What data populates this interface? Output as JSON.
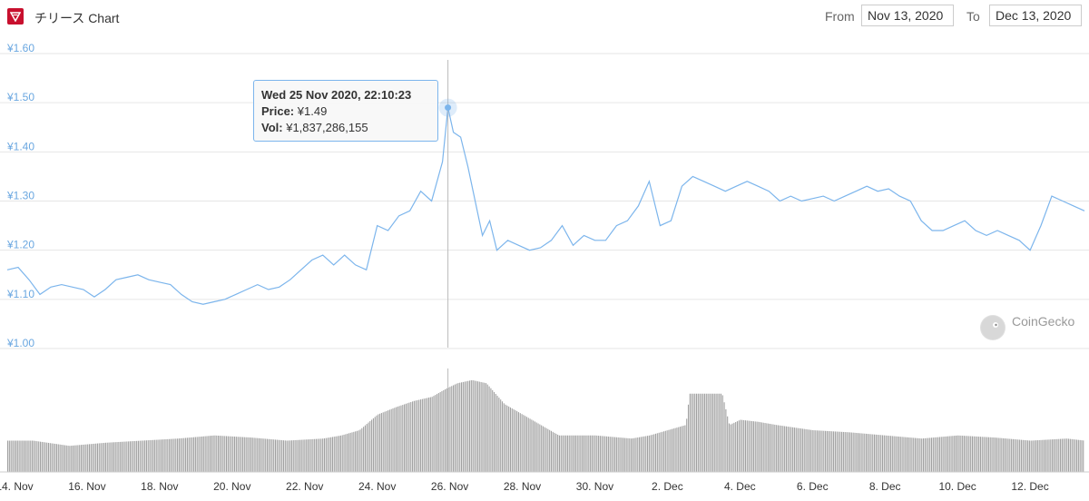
{
  "header": {
    "title": "チリース Chart",
    "from_label": "From",
    "from_value": "Nov 13, 2020",
    "to_label": "To",
    "to_value": "Dec 13, 2020"
  },
  "tooltip": {
    "date": "Wed 25 Nov 2020, 22:10:23",
    "price_label": "Price:",
    "price_value": "¥1.49",
    "vol_label": "Vol:",
    "vol_value": "¥1,837,286,155"
  },
  "credit": "CoinGecko",
  "colors": {
    "line": "#7cb5ec",
    "volume": "#a0a0a0",
    "grid": "#e6e6e6",
    "axis_label": "#6aa7e0"
  },
  "chart_data": {
    "type": "line",
    "title": "チリース Chart",
    "y_ticks": [
      "¥1.00",
      "¥1.10",
      "¥1.20",
      "¥1.30",
      "¥1.40",
      "¥1.50",
      "¥1.60"
    ],
    "ylim": [
      1.0,
      1.6
    ],
    "x_ticks": [
      "14. Nov",
      "16. Nov",
      "18. Nov",
      "20. Nov",
      "22. Nov",
      "24. Nov",
      "26. Nov",
      "28. Nov",
      "30. Nov",
      "2. Dec",
      "4. Dec",
      "6. Dec",
      "8. Dec",
      "10. Dec",
      "12. Dec"
    ],
    "x_start_day": 13.8,
    "x_end_day": 43.5,
    "series": [
      {
        "x": [
          13.8,
          14.1,
          14.4,
          14.7,
          15.0,
          15.3,
          15.6,
          15.9,
          16.2,
          16.5,
          16.8,
          17.1,
          17.4,
          17.7,
          18.0,
          18.3,
          18.6,
          18.9,
          19.2,
          19.5,
          19.8,
          20.1,
          20.4,
          20.7,
          21.0,
          21.3,
          21.6,
          21.9,
          22.2,
          22.5,
          22.8,
          23.1,
          23.4,
          23.7,
          24.0,
          24.3,
          24.6,
          24.9,
          25.2,
          25.5,
          25.8,
          25.95,
          26.1,
          26.3,
          26.5,
          26.7,
          26.9,
          27.1,
          27.3,
          27.6,
          27.9,
          28.2,
          28.5,
          28.8,
          29.1,
          29.4,
          29.7,
          30.0,
          30.3,
          30.6,
          30.9,
          31.2,
          31.5,
          31.8,
          32.1,
          32.4,
          32.7,
          33.0,
          33.3,
          33.6,
          33.9,
          34.2,
          34.5,
          34.8,
          35.1,
          35.4,
          35.7,
          36.0,
          36.3,
          36.6,
          36.9,
          37.2,
          37.5,
          37.8,
          38.1,
          38.4,
          38.7,
          39.0,
          39.3,
          39.6,
          39.9,
          40.2,
          40.5,
          40.8,
          41.1,
          41.4,
          41.7,
          42.0,
          42.3,
          42.6,
          42.9,
          43.2,
          43.5
        ],
        "values": [
          1.16,
          1.165,
          1.14,
          1.11,
          1.125,
          1.13,
          1.125,
          1.12,
          1.105,
          1.12,
          1.14,
          1.145,
          1.15,
          1.14,
          1.135,
          1.13,
          1.11,
          1.095,
          1.09,
          1.095,
          1.1,
          1.11,
          1.12,
          1.13,
          1.12,
          1.125,
          1.14,
          1.16,
          1.18,
          1.19,
          1.17,
          1.19,
          1.17,
          1.16,
          1.25,
          1.24,
          1.27,
          1.28,
          1.32,
          1.3,
          1.38,
          1.49,
          1.44,
          1.43,
          1.37,
          1.3,
          1.23,
          1.26,
          1.2,
          1.22,
          1.21,
          1.2,
          1.205,
          1.22,
          1.25,
          1.21,
          1.23,
          1.22,
          1.22,
          1.25,
          1.26,
          1.29,
          1.34,
          1.25,
          1.26,
          1.33,
          1.35,
          1.34,
          1.33,
          1.32,
          1.33,
          1.34,
          1.33,
          1.32,
          1.3,
          1.31,
          1.3,
          1.305,
          1.31,
          1.3,
          1.31,
          1.32,
          1.33,
          1.32,
          1.325,
          1.31,
          1.3,
          1.26,
          1.24,
          1.24,
          1.25,
          1.26,
          1.24,
          1.23,
          1.24,
          1.23,
          1.22,
          1.2,
          1.25,
          1.31,
          1.3,
          1.29,
          1.28
        ]
      },
      {
        "x": [
          13.8,
          14.5,
          15.5,
          16.5,
          17.5,
          18.5,
          19.5,
          20.5,
          21.5,
          22.5,
          23.0,
          23.5,
          24.0,
          24.5,
          25.0,
          25.5,
          25.9,
          26.2,
          26.6,
          27.0,
          27.5,
          28.0,
          28.5,
          29.0,
          30.0,
          31.0,
          31.5,
          32.0,
          32.5,
          32.6,
          33.5,
          33.7,
          34.0,
          34.5,
          35.0,
          36.0,
          37.0,
          38.0,
          39.0,
          40.0,
          41.0,
          42.0,
          43.0,
          43.5
        ],
        "values": [
          0.3,
          0.3,
          0.25,
          0.28,
          0.3,
          0.32,
          0.35,
          0.33,
          0.3,
          0.32,
          0.35,
          0.4,
          0.55,
          0.62,
          0.68,
          0.72,
          0.8,
          0.85,
          0.88,
          0.85,
          0.65,
          0.55,
          0.45,
          0.35,
          0.35,
          0.32,
          0.35,
          0.4,
          0.45,
          0.75,
          0.75,
          0.45,
          0.5,
          0.48,
          0.45,
          0.4,
          0.38,
          0.35,
          0.32,
          0.35,
          0.33,
          0.3,
          0.32,
          0.3
        ]
      }
    ]
  }
}
